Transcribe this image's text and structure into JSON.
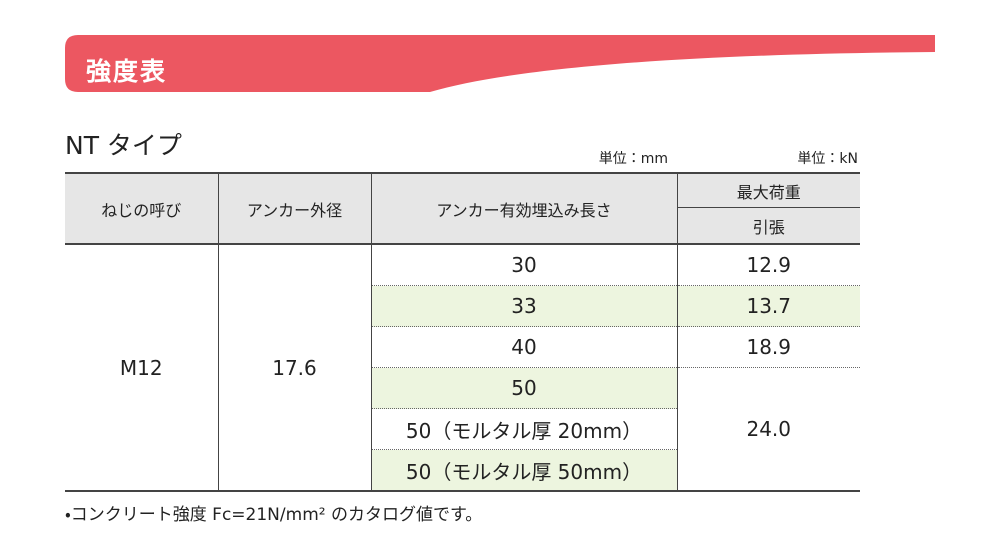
{
  "header": {
    "title": "強度表"
  },
  "section": {
    "title": "NT タイプ",
    "unit_left": "単位：mm",
    "unit_right": "単位：kN"
  },
  "table": {
    "columns": [
      "ねじの呼び",
      "アンカー外径",
      "アンカー有効埋込み長さ",
      "最大荷重",
      "引張"
    ],
    "size": "M12",
    "diameter": "17.6",
    "embedment": [
      "30",
      "33",
      "40",
      "50",
      "50（モルタル厚 20mm）",
      "50（モルタル厚 50mm）"
    ],
    "load": [
      "12.9",
      "13.7",
      "18.9",
      "24.0"
    ]
  },
  "footnote": "・コンクリート強度 Fc=21N/mm² のカタログ値です。"
}
